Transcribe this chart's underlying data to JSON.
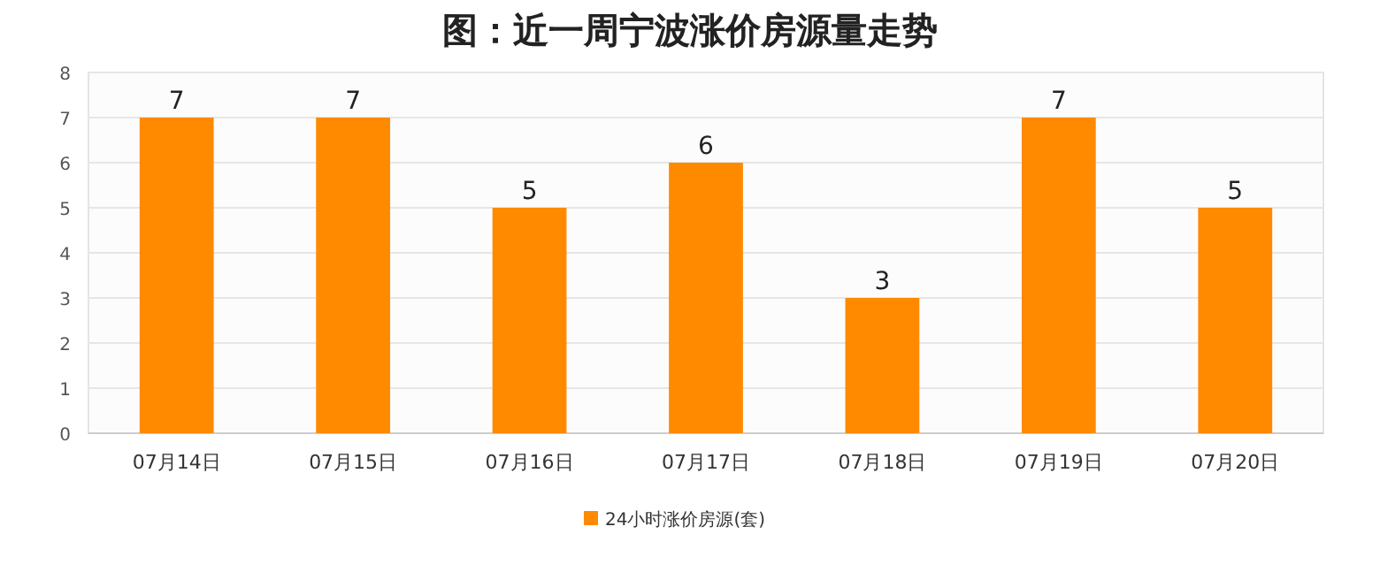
{
  "chart_data": {
    "type": "bar",
    "title": "图：近一周宁波涨价房源量走势",
    "categories": [
      "07月14日",
      "07月15日",
      "07月16日",
      "07月17日",
      "07月18日",
      "07月19日",
      "07月20日"
    ],
    "series": [
      {
        "name": "24小时涨价房源(套)",
        "color": "#ff8a00",
        "values": [
          7,
          7,
          5,
          6,
          3,
          7,
          5
        ]
      }
    ],
    "ylim": [
      0,
      8
    ],
    "yticks": [
      0,
      1,
      2,
      3,
      4,
      5,
      6,
      7,
      8
    ],
    "grid": "y",
    "data_labels": true,
    "legend": "bottom"
  }
}
